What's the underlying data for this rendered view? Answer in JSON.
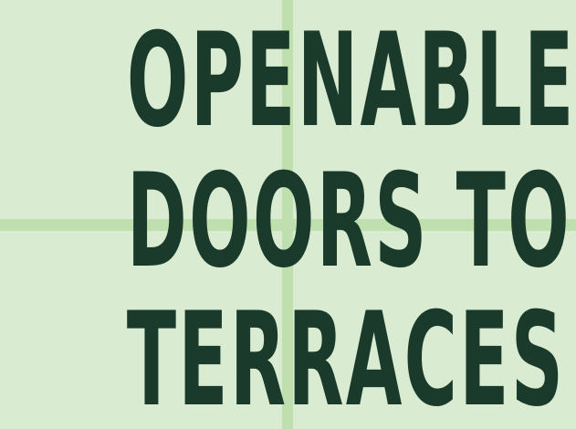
{
  "colors": {
    "background": "#d9ecd1",
    "grid_line": "#bfe0ae",
    "text": "#1a3a2b"
  },
  "headline": {
    "lines": [
      "OPENABLE",
      "DOORS TO",
      "TERRACES"
    ]
  }
}
